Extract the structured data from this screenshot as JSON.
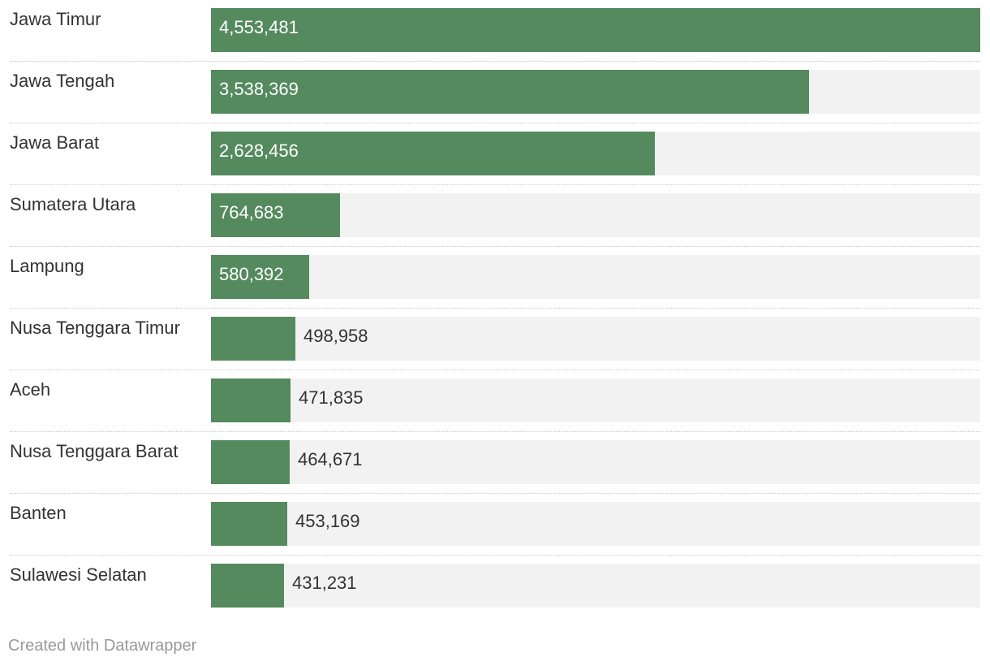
{
  "chart_data": {
    "type": "bar",
    "orientation": "horizontal",
    "categories": [
      "Jawa Timur",
      "Jawa Tengah",
      "Jawa Barat",
      "Sumatera Utara",
      "Lampung",
      "Nusa Tenggara Timur",
      "Aceh",
      "Nusa Tenggara Barat",
      "Banten",
      "Sulawesi Selatan"
    ],
    "values": [
      4553481,
      3538369,
      2628456,
      764683,
      580392,
      498958,
      471835,
      464671,
      453169,
      431231
    ],
    "value_labels": [
      "4,553,481",
      "3,538,369",
      "2,628,456",
      "764,683",
      "580,392",
      "498,958",
      "471,835",
      "464,671",
      "453,169",
      "431,231"
    ],
    "xlim": [
      0,
      4553481
    ],
    "bar_color": "#548a5e",
    "track_color": "#f2f2f2",
    "title": "",
    "xlabel": "",
    "ylabel": "",
    "grid": false,
    "legend": false
  },
  "footer": {
    "credit": "Created with Datawrapper"
  }
}
